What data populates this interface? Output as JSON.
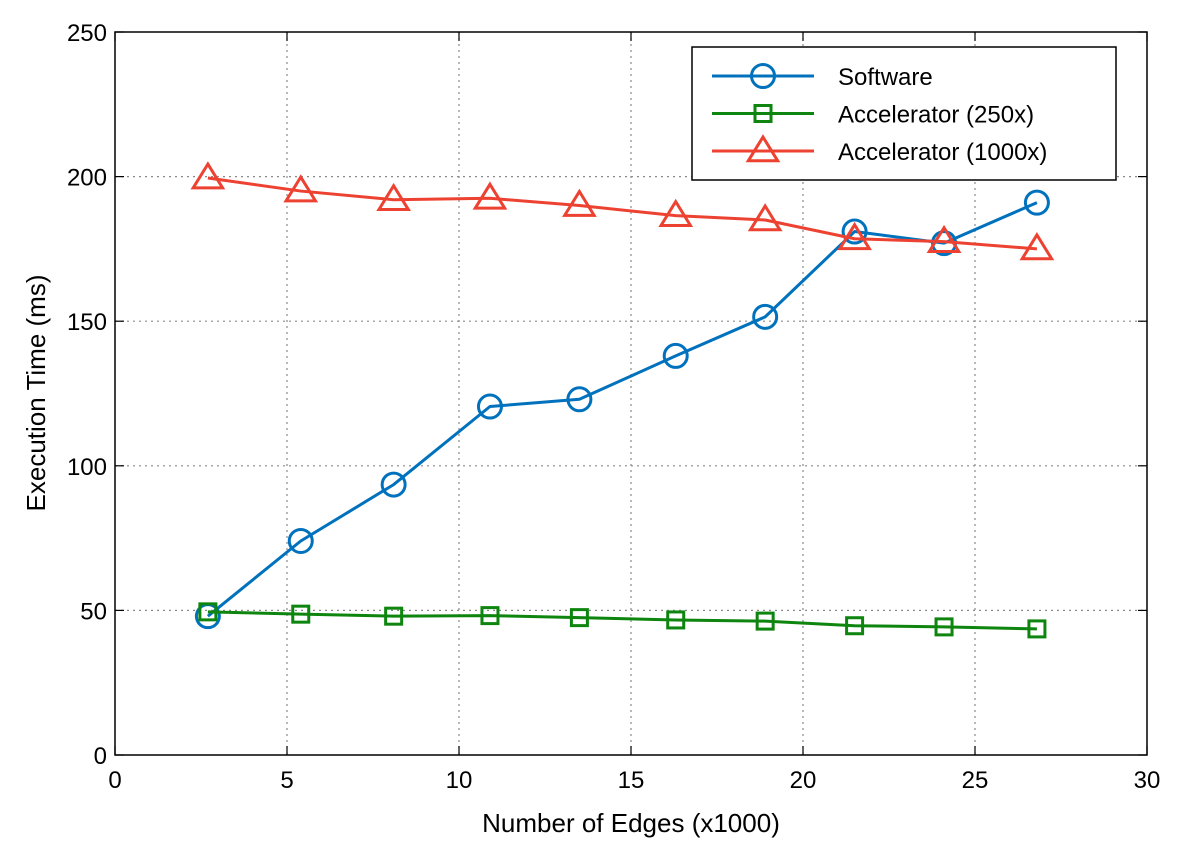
{
  "chart_data": {
    "type": "line",
    "title": "",
    "xlabel": "Number of Edges (x1000)",
    "ylabel": "Execution Time (ms)",
    "xlim": [
      0,
      30
    ],
    "ylim": [
      0,
      250
    ],
    "xticks": [
      0,
      5,
      10,
      15,
      20,
      25,
      30
    ],
    "yticks": [
      0,
      50,
      100,
      150,
      200,
      250
    ],
    "grid": true,
    "legend": "top-right",
    "series": [
      {
        "name": "Software",
        "color": "#0072bd",
        "marker": "circle",
        "x": [
          2.7,
          5.4,
          8.1,
          10.9,
          13.5,
          16.3,
          18.9,
          21.5,
          24.1,
          26.8
        ],
        "y": [
          48,
          74,
          93.5,
          120.5,
          123,
          138,
          151.5,
          181,
          177,
          191
        ]
      },
      {
        "name": "Accelerator (250x)",
        "color": "#0e850e",
        "marker": "square",
        "x": [
          2.7,
          5.4,
          8.1,
          10.9,
          13.5,
          16.3,
          18.9,
          21.5,
          24.1,
          26.8
        ],
        "y": [
          49.5,
          48.7,
          48,
          48.2,
          47.5,
          46.7,
          46.3,
          44.7,
          44.3,
          43.6
        ]
      },
      {
        "name": "Accelerator (1000x)",
        "color": "#ed4231",
        "marker": "triangle",
        "x": [
          2.7,
          5.4,
          8.1,
          10.9,
          13.5,
          16.3,
          18.9,
          21.5,
          24.1,
          26.8
        ],
        "y": [
          199.5,
          195,
          192,
          192.5,
          190,
          186.5,
          185,
          178.5,
          177.5,
          175
        ]
      }
    ]
  }
}
